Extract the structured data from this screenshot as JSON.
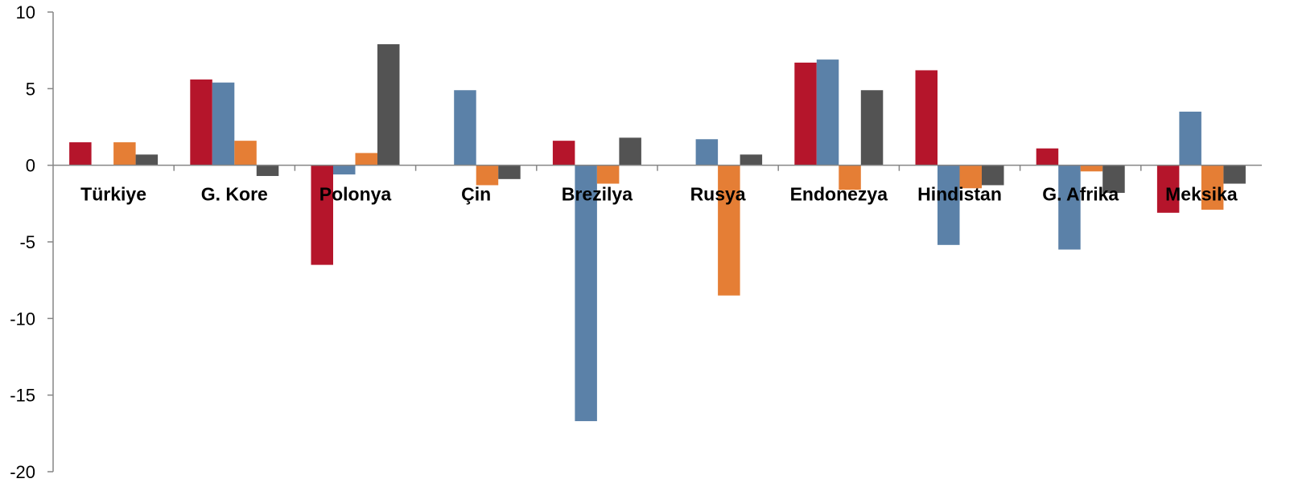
{
  "chart_data": {
    "type": "bar",
    "title": "",
    "xlabel": "",
    "ylabel": "",
    "ylim": [
      -20,
      10
    ],
    "yticks": [
      10,
      5,
      0,
      -5,
      -10,
      -15,
      -20
    ],
    "grid": false,
    "legend": "none",
    "categories": [
      "Türkiye",
      "G. Kore",
      "Polonya",
      "Çin",
      "Brezilya",
      "Rusya",
      "Endonezya",
      "Hindistan",
      "G. Afrika",
      "Meksika"
    ],
    "series": [
      {
        "color": "#b5152b",
        "values": [
          1.5,
          5.6,
          -6.5,
          0,
          1.6,
          0,
          6.7,
          6.2,
          1.1,
          -3.1
        ]
      },
      {
        "color": "#5b81a8",
        "values": [
          0,
          5.4,
          -0.6,
          4.9,
          -16.7,
          1.7,
          6.9,
          -5.2,
          -5.5,
          3.5
        ]
      },
      {
        "color": "#e57e35",
        "values": [
          1.5,
          1.6,
          0.8,
          -1.3,
          -1.2,
          -8.5,
          -1.6,
          -1.5,
          -0.4,
          -2.9
        ]
      },
      {
        "color": "#535353",
        "values": [
          0.7,
          -0.7,
          7.9,
          -0.9,
          1.8,
          0.7,
          4.9,
          -1.3,
          -1.8,
          -1.2
        ]
      }
    ]
  }
}
